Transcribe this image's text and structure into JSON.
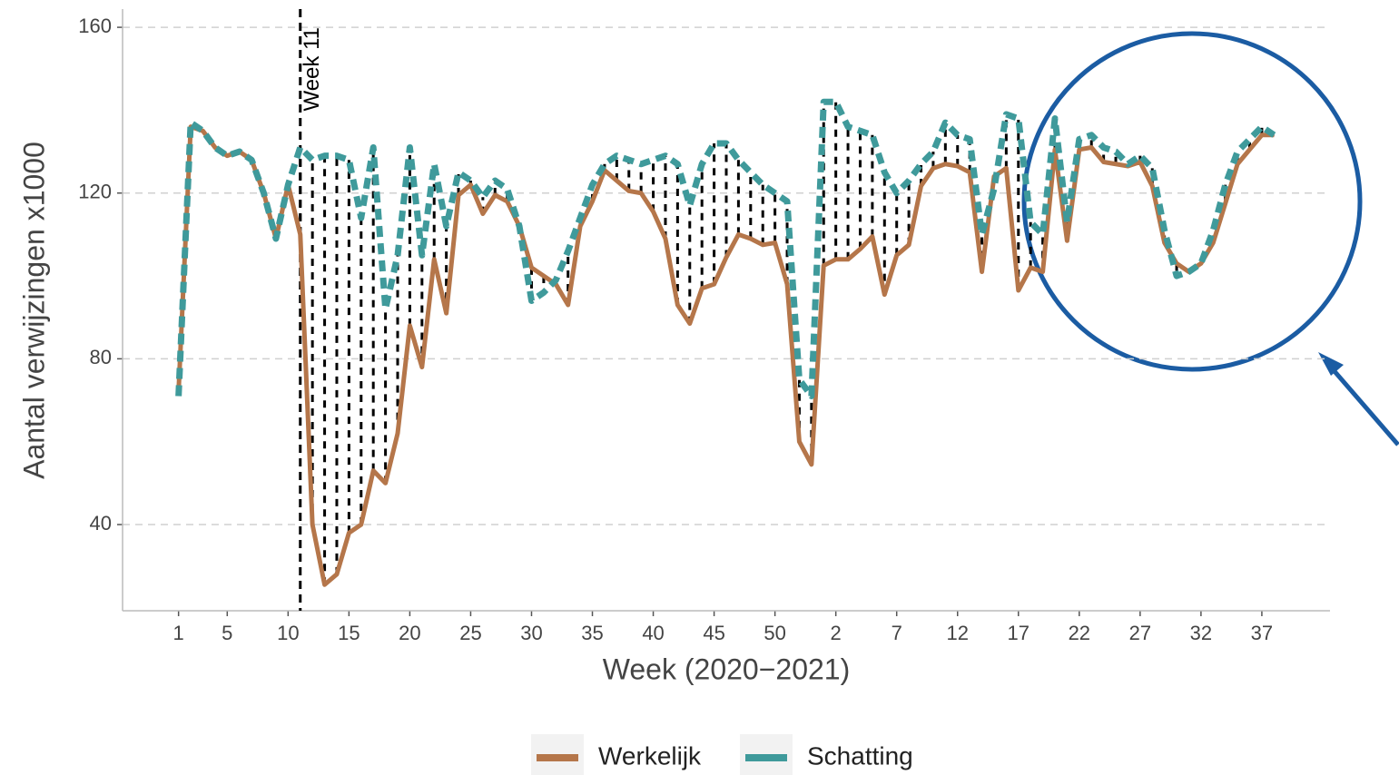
{
  "chart_data": {
    "type": "line",
    "x_label": "Week (2020−2021)",
    "y_label": "Aantal verwijzingen x1000",
    "x": [
      1,
      2,
      3,
      4,
      5,
      6,
      7,
      8,
      9,
      10,
      11,
      12,
      13,
      14,
      15,
      16,
      17,
      18,
      19,
      20,
      21,
      22,
      23,
      24,
      25,
      26,
      27,
      28,
      29,
      30,
      31,
      32,
      33,
      34,
      35,
      36,
      37,
      38,
      39,
      40,
      41,
      42,
      43,
      44,
      45,
      46,
      47,
      48,
      49,
      50,
      51,
      52,
      53,
      54,
      55,
      56,
      57,
      58,
      59,
      60,
      61,
      62,
      63,
      64,
      65,
      66,
      67,
      68,
      69,
      70,
      71,
      72,
      73,
      74,
      75,
      76,
      77,
      78,
      79,
      80,
      81,
      82,
      83,
      84,
      85,
      86,
      87,
      88,
      89,
      90,
      91
    ],
    "series": [
      {
        "name": "Werkelijk",
        "color": "#b5764a",
        "values": [
          72,
          136,
          135,
          131,
          129,
          130,
          128,
          120,
          109,
          122,
          110,
          40,
          25.5,
          28,
          38,
          40,
          53,
          50,
          62,
          88,
          78,
          104,
          91,
          119.5,
          122,
          115,
          119.5,
          118,
          112,
          102,
          100,
          98,
          93,
          112,
          118,
          125.5,
          123,
          120.5,
          120,
          115.5,
          109,
          93,
          88.5,
          97,
          98,
          104.5,
          110,
          109,
          107.5,
          108,
          98,
          60,
          54.5,
          102.5,
          104,
          104,
          106.5,
          109.5,
          95.5,
          105,
          107.5,
          121.7,
          126,
          127,
          126.5,
          125,
          101,
          124,
          126,
          96.5,
          102,
          101,
          130.5,
          108.5,
          130.5,
          131,
          127.5,
          127,
          126.5,
          127.5,
          121.7,
          108,
          103,
          101,
          103,
          108,
          117.5,
          127,
          130.5,
          134,
          134
        ]
      },
      {
        "name": "Schatting",
        "color": "#3f9a9b",
        "values": [
          71,
          137,
          135,
          131,
          129,
          130,
          128,
          120,
          109,
          122,
          131,
          128,
          129,
          129,
          128,
          114,
          131,
          92,
          105,
          131,
          105,
          127,
          112,
          125,
          123,
          119,
          123,
          121,
          112,
          94,
          96,
          99,
          106,
          114,
          122,
          127,
          129,
          128,
          127,
          128,
          129,
          127,
          117,
          127,
          132,
          132,
          128,
          125,
          122,
          120,
          118,
          75,
          71,
          142,
          142,
          136,
          135,
          134,
          125,
          120,
          123,
          127,
          130,
          137,
          134,
          133,
          110,
          121,
          139,
          138,
          113,
          110,
          138,
          113,
          133,
          134,
          131,
          130,
          127,
          129,
          126,
          111,
          100,
          101,
          103,
          111,
          122,
          130,
          133,
          136,
          134
        ]
      }
    ],
    "xlim": [
      -3.6,
      95.6
    ],
    "xticks": [
      1,
      5,
      10,
      15,
      20,
      25,
      30,
      35,
      40,
      45,
      50,
      {
        "value": 55,
        "label": "2"
      },
      {
        "value": 60,
        "label": "7"
      },
      {
        "value": 65,
        "label": "12"
      },
      {
        "value": 70,
        "label": "17"
      },
      {
        "value": 75,
        "label": "22"
      },
      {
        "value": 80,
        "label": "27"
      },
      {
        "value": 85,
        "label": "32"
      },
      {
        "value": 90,
        "label": "37"
      }
    ],
    "ylim": [
      19.2,
      164.4
    ],
    "yticks": [
      40,
      80,
      120,
      160
    ],
    "grid": true,
    "vline": {
      "x": 11,
      "label": "Week 11"
    },
    "legend": "bottom"
  }
}
